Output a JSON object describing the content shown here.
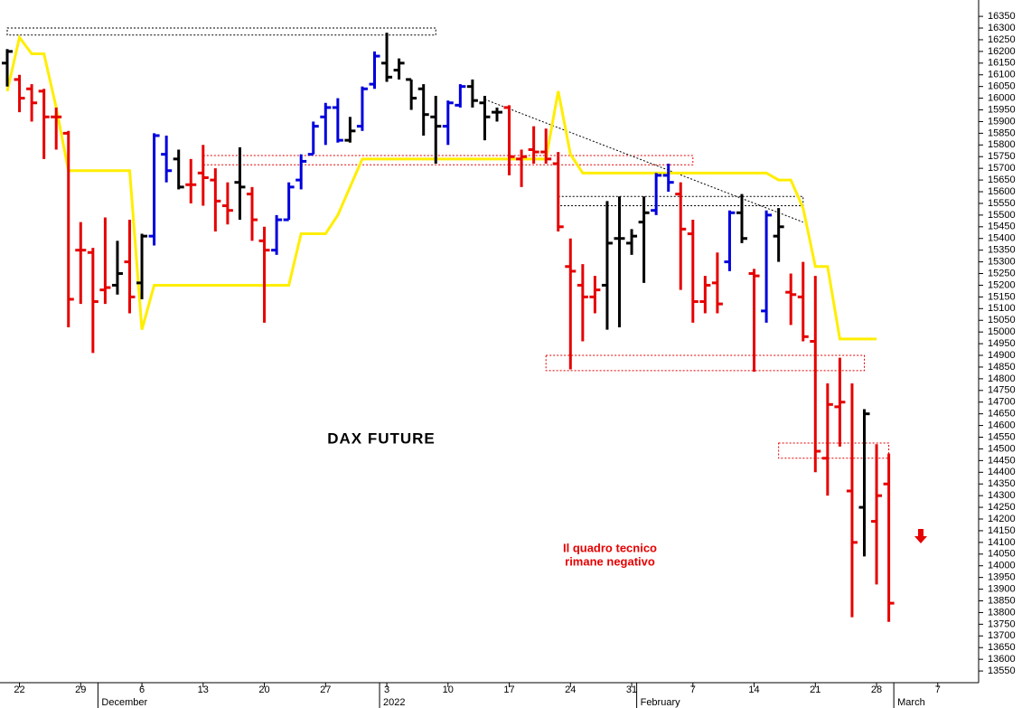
{
  "chart_data": {
    "type": "ohlc",
    "title": "DAX FUTURE",
    "annotation": [
      "Il quadro tecnico",
      "rimane negativo"
    ],
    "categories": [
      null,
      "22",
      null,
      null,
      null,
      null,
      "29",
      null,
      null,
      null,
      null,
      "6",
      null,
      null,
      null,
      null,
      "13",
      null,
      null,
      null,
      null,
      "20",
      null,
      null,
      null,
      null,
      "27",
      null,
      null,
      null,
      null,
      "3",
      null,
      null,
      null,
      null,
      "10",
      null,
      null,
      null,
      null,
      "17",
      null,
      null,
      null,
      null,
      "24",
      null,
      null,
      null,
      null,
      "31",
      null,
      null,
      null,
      null,
      "7",
      null,
      null,
      null,
      null,
      "14",
      null,
      null,
      null,
      null,
      "21",
      null,
      null,
      null,
      null,
      "28",
      null,
      null,
      null,
      null,
      "7"
    ],
    "month_labels": [
      {
        "category": 8,
        "label": "December"
      },
      {
        "category": 31,
        "label": "2022"
      },
      {
        "category": 52,
        "label": "February"
      },
      {
        "category": 73,
        "label": "March"
      }
    ],
    "open": [
      16150,
      16080,
      16040,
      16030,
      15920,
      15850,
      15350,
      15340,
      15180,
      15200,
      15300,
      15210,
      15410,
      15760,
      15740,
      15630,
      15680,
      15650,
      15540,
      15640,
      15590,
      15390,
      15350,
      15480,
      15650,
      15760,
      15920,
      15960,
      15820,
      15880,
      16060,
      16150,
      16120,
      16080,
      16040,
      15920,
      15880,
      15970,
      16050,
      15980,
      15940,
      15960,
      15740,
      15780,
      15770,
      15720,
      15280,
      15200,
      15150,
      15200,
      15400,
      15380,
      15470,
      15520,
      15670,
      15590,
      15420,
      15130,
      15210,
      15300,
      15510,
      15250,
      15090,
      15410,
      15170,
      15150,
      14960,
      14460,
      14680,
      14320,
      14250,
      14190,
      14350,
      null,
      null,
      null,
      null
    ],
    "high": [
      16210,
      16100,
      16060,
      16040,
      15960,
      15860,
      15470,
      15360,
      15490,
      15390,
      15480,
      15420,
      15850,
      15840,
      15780,
      15740,
      15800,
      15700,
      15640,
      15790,
      15620,
      15450,
      15500,
      15640,
      15760,
      15900,
      15980,
      16000,
      15920,
      16050,
      16200,
      16280,
      16170,
      16080,
      16060,
      16010,
      15990,
      16060,
      16080,
      16010,
      15960,
      15970,
      15780,
      15880,
      15870,
      15770,
      15400,
      15290,
      15240,
      15560,
      15580,
      15440,
      15580,
      15680,
      15720,
      15640,
      15480,
      15240,
      15340,
      15520,
      15590,
      15270,
      15520,
      15530,
      15250,
      15300,
      15240,
      14780,
      14890,
      14780,
      14670,
      14520,
      14480,
      null,
      null,
      null,
      null
    ],
    "low": [
      16050,
      15940,
      15900,
      15740,
      15780,
      15020,
      15120,
      14910,
      15120,
      15160,
      15080,
      15140,
      15370,
      15640,
      15610,
      15550,
      15540,
      15430,
      15460,
      15480,
      15390,
      15040,
      15330,
      15480,
      15610,
      15760,
      15800,
      15810,
      15810,
      15860,
      16040,
      16070,
      16080,
      15950,
      15840,
      15720,
      15800,
      15960,
      15960,
      15820,
      15900,
      15670,
      15620,
      15720,
      15720,
      15430,
      14840,
      14960,
      15080,
      15010,
      15020,
      15330,
      15210,
      15500,
      15600,
      15180,
      15040,
      15080,
      15080,
      15260,
      15380,
      14830,
      15040,
      15300,
      15030,
      14960,
      14400,
      14300,
      14510,
      13780,
      14040,
      13920,
      13760,
      null,
      null,
      null,
      null
    ],
    "close": [
      16200,
      16000,
      15980,
      15920,
      15920,
      15140,
      15350,
      15130,
      15190,
      15250,
      15150,
      15410,
      15840,
      15690,
      15620,
      15630,
      15660,
      15560,
      15520,
      15620,
      15480,
      15350,
      15480,
      15620,
      15730,
      15880,
      15960,
      15820,
      15860,
      16040,
      16180,
      16090,
      16150,
      16000,
      15930,
      15880,
      15980,
      16050,
      15990,
      15920,
      15940,
      15750,
      15750,
      15770,
      15740,
      15450,
      15260,
      15150,
      15180,
      15380,
      15400,
      15410,
      15510,
      15670,
      15640,
      15440,
      15130,
      15200,
      15120,
      15510,
      15400,
      15240,
      15500,
      15450,
      15160,
      14980,
      14490,
      14690,
      14700,
      14100,
      14650,
      14300,
      13840,
      null,
      null,
      null,
      null
    ],
    "bar_colors": [
      "k",
      "r",
      "r",
      "r",
      "r",
      "r",
      "r",
      "r",
      "r",
      "k",
      "r",
      "k",
      "b",
      "b",
      "k",
      "r",
      "r",
      "r",
      "r",
      "k",
      "r",
      "r",
      "b",
      "b",
      "b",
      "b",
      "b",
      "b",
      "k",
      "b",
      "b",
      "k",
      "k",
      "k",
      "k",
      "k",
      "b",
      "b",
      "k",
      "k",
      "k",
      "r",
      "r",
      "r",
      "r",
      "r",
      "r",
      "r",
      "r",
      "k",
      "k",
      "k",
      "k",
      "b",
      "b",
      "r",
      "r",
      "r",
      "r",
      "b",
      "k",
      "r",
      "b",
      "k",
      "r",
      "r",
      "r",
      "r",
      "r",
      "r",
      "k",
      "r",
      "r",
      null,
      null,
      null,
      null
    ],
    "palette": {
      "r": "#e60000",
      "b": "#0000dd",
      "k": "#000000"
    },
    "trend_line": {
      "color": "#ffee00",
      "values": [
        16030,
        16260,
        16190,
        16190,
        15960,
        15690,
        15690,
        15690,
        15690,
        15690,
        15690,
        15010,
        15200,
        15200,
        15200,
        15200,
        15200,
        15200,
        15200,
        15200,
        15200,
        15200,
        15200,
        15200,
        15420,
        15420,
        15420,
        15500,
        15620,
        15740,
        15740,
        15740,
        15740,
        15740,
        15740,
        15740,
        15740,
        15740,
        15740,
        15740,
        15740,
        15740,
        15740,
        15740,
        15740,
        16030,
        15760,
        15680,
        15680,
        15680,
        15680,
        15680,
        15680,
        15680,
        15680,
        15680,
        15680,
        15680,
        15680,
        15680,
        15680,
        15680,
        15680,
        15650,
        15650,
        15530,
        15280,
        15280,
        14970,
        14970,
        14970,
        14970,
        null,
        null,
        null,
        null
      ]
    },
    "zones": [
      {
        "x0": 0,
        "x1": 35,
        "low": 16270,
        "high": 16300,
        "color": "#000000"
      },
      {
        "x0": 16,
        "x1": 56,
        "low": 15715,
        "high": 15755,
        "color": "#e60000"
      },
      {
        "x0": 45,
        "x1": 65,
        "low": 15540,
        "high": 15580,
        "color": "#000000"
      },
      {
        "x0": 44,
        "x1": 70,
        "low": 14835,
        "high": 14900,
        "color": "#e60000"
      },
      {
        "x0": 63,
        "x1": 72,
        "low": 14460,
        "high": 14525,
        "color": "#e60000"
      }
    ],
    "resistance": {
      "x0": 39,
      "x1": 65,
      "y0": 15995,
      "y1": 15470
    },
    "ylim": [
      13500,
      16420
    ],
    "yticks": [
      13550,
      13600,
      13650,
      13700,
      13750,
      13800,
      13850,
      13900,
      13950,
      14000,
      14050,
      14100,
      14150,
      14200,
      14250,
      14300,
      14350,
      14400,
      14450,
      14500,
      14550,
      14600,
      14650,
      14700,
      14750,
      14800,
      14850,
      14900,
      14950,
      15000,
      15050,
      15100,
      15150,
      15200,
      15250,
      15300,
      15350,
      15400,
      15450,
      15500,
      15550,
      15600,
      15650,
      15700,
      15750,
      15800,
      15850,
      15900,
      15950,
      16000,
      16050,
      16100,
      16150,
      16200,
      16250,
      16300,
      16350
    ],
    "grid": false
  }
}
